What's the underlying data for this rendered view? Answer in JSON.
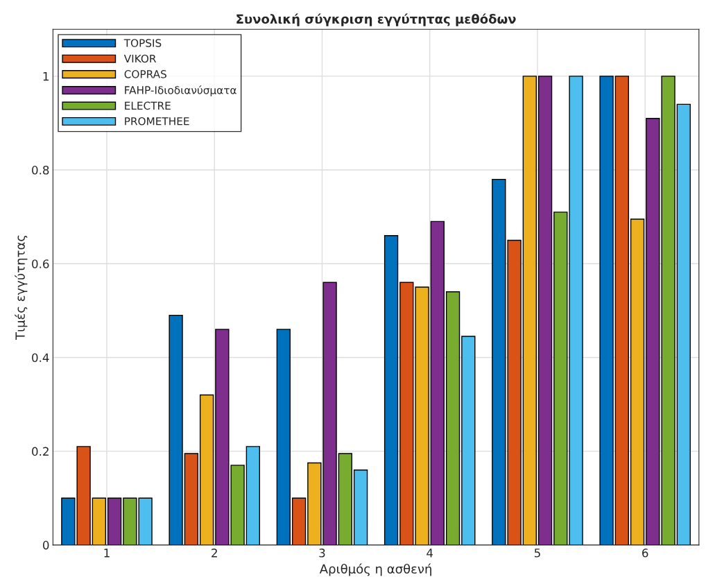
{
  "chart_data": {
    "type": "bar",
    "title": "Συνολική σύγκριση εγγύτητας μεθόδων",
    "xlabel": "Αριθμός η ασθενή",
    "ylabel": "Τιμές εγγύτητας",
    "categories": [
      "1",
      "2",
      "3",
      "4",
      "5",
      "6"
    ],
    "series": [
      {
        "name": "TOPSIS",
        "color": "#0072bd",
        "values": [
          0.1,
          0.49,
          0.46,
          0.66,
          0.78,
          1.0
        ]
      },
      {
        "name": "VIKOR",
        "color": "#d95319",
        "values": [
          0.21,
          0.195,
          0.1,
          0.56,
          0.65,
          1.0
        ]
      },
      {
        "name": "COPRAS",
        "color": "#edb120",
        "values": [
          0.1,
          0.32,
          0.175,
          0.55,
          1.0,
          0.695
        ]
      },
      {
        "name": "FAHP-Ιδιοδιανύσματα",
        "color": "#7e2f8e",
        "values": [
          0.1,
          0.46,
          0.56,
          0.69,
          1.0,
          0.91
        ]
      },
      {
        "name": "ELECTRE",
        "color": "#77ac30",
        "values": [
          0.1,
          0.17,
          0.195,
          0.54,
          0.71,
          1.0
        ]
      },
      {
        "name": "PROMETHEE",
        "color": "#4dbeee",
        "values": [
          0.1,
          0.21,
          0.16,
          0.445,
          1.0,
          0.94
        ]
      }
    ],
    "ylim": [
      0,
      1.1
    ],
    "yticks": [
      0,
      0.2,
      0.4,
      0.6,
      0.8,
      1
    ],
    "grid": true,
    "legend": "top left"
  }
}
